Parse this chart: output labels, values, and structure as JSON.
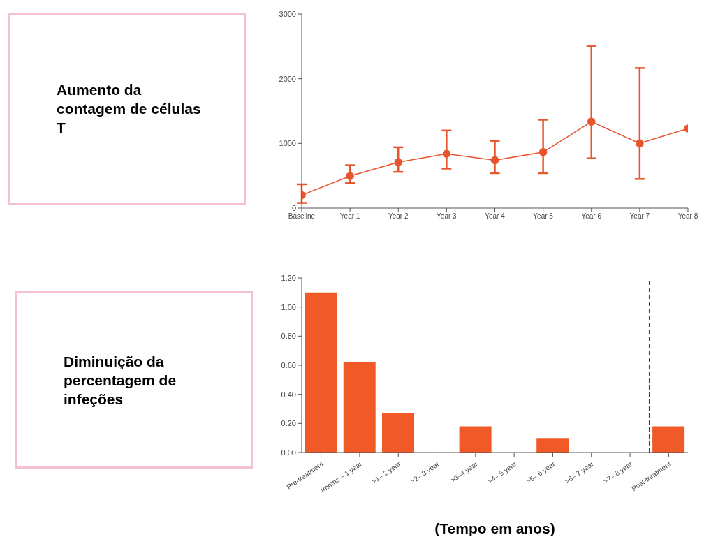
{
  "chart_data": [
    {
      "type": "other",
      "title": "Aumento da contagem de células T"
    },
    {
      "type": "line",
      "categories": [
        "Baseline",
        "Year 1",
        "Year 2",
        "Year 3",
        "Year 4",
        "Year 5",
        "Year 6",
        "Year 7",
        "Year 8"
      ],
      "series": [
        {
          "color": "#e8552d",
          "values": [
            200,
            495,
            710,
            840,
            740,
            865,
            1335,
            1000,
            1230
          ],
          "errors": [
            [
              80,
              367
            ],
            [
              385,
              663
            ],
            [
              560,
              940
            ],
            [
              610,
              1200
            ],
            [
              540,
              1040
            ],
            [
              540,
              1365
            ],
            [
              770,
              2500
            ],
            [
              450,
              2165
            ],
            null
          ]
        }
      ],
      "ylim": [
        0,
        3000
      ],
      "yticks": [
        0,
        1000,
        2000,
        3000
      ],
      "marker": "circle",
      "grid": false,
      "legend": false
    },
    {
      "type": "other",
      "title": "Diminuição da percentagem de infeções"
    },
    {
      "type": "bar",
      "categories": [
        "Pre-treatment",
        "4mnths – 1 year",
        ">1– 2 year",
        ">2– 3 year",
        ">3–4 year",
        ">4– 5 year",
        ">5– 6 year",
        ">6– 7 year",
        ">7– 8 year",
        "Post-treatment"
      ],
      "values": [
        1.1,
        0.62,
        0.27,
        0,
        0.18,
        0,
        0.1,
        0,
        0,
        0.18
      ],
      "color": "#f05a28",
      "ylim": [
        0,
        1.2
      ],
      "yticks": [
        {
          "value": 0,
          "label": "0.00"
        },
        {
          "value": 0.2,
          "label": "0.20"
        },
        {
          "value": 0.4,
          "label": "0.40"
        },
        {
          "value": 0.6,
          "label": "0.60"
        },
        {
          "value": 0.8,
          "label": "0.80"
        },
        {
          "value": 1.0,
          "label": "1.00"
        },
        {
          "value": 1.2,
          "label": "1.20"
        }
      ],
      "xlabel": "(Tempo em anos)",
      "grid": false,
      "legend": false,
      "ref_lines": [
        {
          "axis": "x",
          "value": "Post-treatment",
          "color": "#444444",
          "line_style": "dashed"
        }
      ]
    }
  ]
}
